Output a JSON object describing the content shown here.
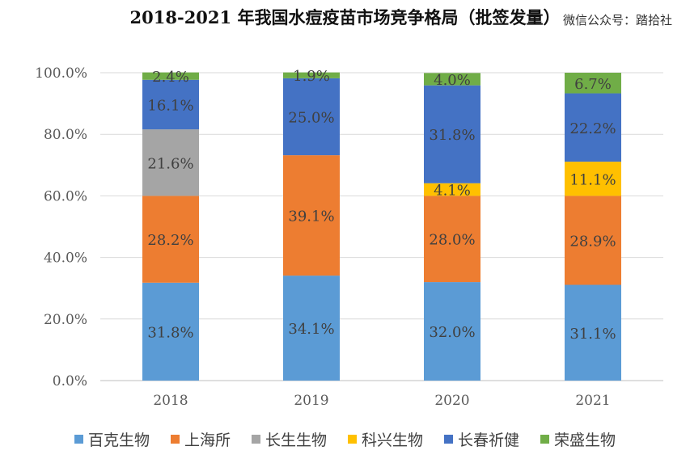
{
  "chart_data": {
    "type": "bar",
    "stacked": true,
    "title": "2018-2021 年我国水痘疫苗市场竞争格局（批签发量）",
    "watermark": "微信公众号：踏拾社",
    "categories": [
      "2018",
      "2019",
      "2020",
      "2021"
    ],
    "ylim": [
      0,
      100
    ],
    "yticks": [
      "0.0%",
      "20.0%",
      "40.0%",
      "60.0%",
      "80.0%",
      "100.0%"
    ],
    "gridlines": true,
    "legend_position": "bottom",
    "series": [
      {
        "name": "百克生物",
        "color": "#5b9bd5",
        "values": [
          31.8,
          34.1,
          32.0,
          31.1
        ],
        "labels": [
          "31.8%",
          "34.1%",
          "32.0%",
          "31.1%"
        ]
      },
      {
        "name": "上海所",
        "color": "#ed7d31",
        "values": [
          28.2,
          39.1,
          28.0,
          28.9
        ],
        "labels": [
          "28.2%",
          "39.1%",
          "28.0%",
          "28.9%"
        ]
      },
      {
        "name": "长生生物",
        "color": "#a5a5a5",
        "values": [
          21.6,
          0,
          0,
          0
        ],
        "labels": [
          "21.6%",
          "",
          "",
          ""
        ]
      },
      {
        "name": "科兴生物",
        "color": "#ffc000",
        "values": [
          0,
          0,
          4.1,
          11.1
        ],
        "labels": [
          "",
          "",
          "4.1%",
          "11.1%"
        ]
      },
      {
        "name": "长春祈健",
        "color": "#4472c4",
        "values": [
          16.1,
          25.0,
          31.8,
          22.2
        ],
        "labels": [
          "16.1%",
          "25.0%",
          "31.8%",
          "22.2%"
        ]
      },
      {
        "name": "荣盛生物",
        "color": "#70ad47",
        "values": [
          2.4,
          1.9,
          4.0,
          6.7
        ],
        "labels": [
          "2.4%",
          "1.9%",
          "4.0%",
          "6.7%"
        ]
      }
    ]
  }
}
